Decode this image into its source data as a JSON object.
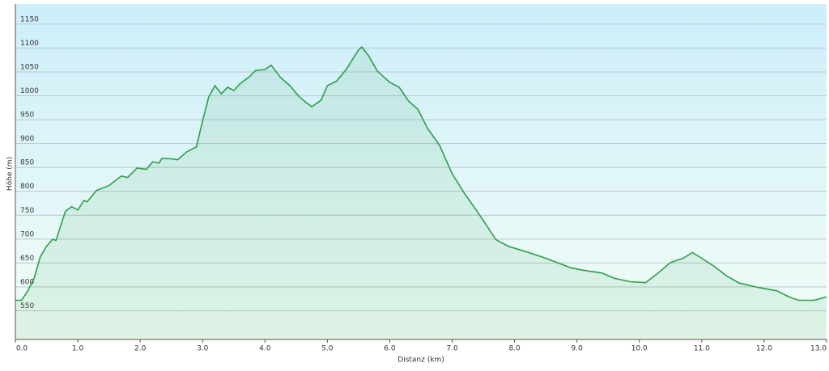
{
  "chart_data": {
    "type": "area",
    "xlabel": "Distanz  (km)",
    "ylabel": "Höhe (m)",
    "color": "#2e9e4a",
    "x": [
      0,
      0.1,
      0.2,
      0.3,
      0.4,
      0.5,
      0.6,
      0.65,
      0.8,
      0.9,
      1.0,
      1.1,
      1.15,
      1.3,
      1.5,
      1.7,
      1.8,
      1.95,
      2.1,
      2.2,
      2.3,
      2.35,
      2.5,
      2.6,
      2.75,
      2.9,
      3.0,
      3.1,
      3.2,
      3.3,
      3.4,
      3.5,
      3.6,
      3.75,
      3.85,
      4.0,
      4.1,
      4.25,
      4.4,
      4.55,
      4.65,
      4.75,
      4.9,
      5.0,
      5.15,
      5.3,
      5.5,
      5.55,
      5.65,
      5.8,
      6.0,
      6.15,
      6.3,
      6.45,
      6.6,
      6.8,
      7.0,
      7.2,
      7.4,
      7.6,
      7.7,
      7.9,
      8.2,
      8.5,
      8.9,
      9.1,
      9.4,
      9.6,
      9.85,
      10.1,
      10.3,
      10.5,
      10.7,
      10.85,
      11.0,
      11.2,
      11.4,
      11.6,
      11.9,
      12.2,
      12.4,
      12.55,
      12.8,
      13.0
    ],
    "values": [
      572,
      572,
      592,
      618,
      663,
      685,
      700,
      697,
      758,
      768,
      761,
      781,
      778,
      802,
      812,
      832,
      829,
      849,
      846,
      862,
      859,
      869,
      868,
      866,
      883,
      893,
      947,
      998,
      1021,
      1004,
      1018,
      1011,
      1025,
      1040,
      1053,
      1055,
      1064,
      1038,
      1021,
      998,
      987,
      977,
      991,
      1021,
      1031,
      1055,
      1096,
      1102,
      1086,
      1052,
      1028,
      1018,
      989,
      972,
      933,
      896,
      837,
      795,
      758,
      719,
      699,
      685,
      673,
      660,
      640,
      635,
      629,
      618,
      611,
      609,
      629,
      651,
      660,
      672,
      660,
      643,
      623,
      608,
      599,
      592,
      579,
      572,
      572,
      579
    ],
    "xlim": [
      0,
      13
    ],
    "ylim": [
      490,
      1192
    ],
    "xticks": [
      {
        "value": 0,
        "label": "0.0"
      },
      {
        "value": 1,
        "label": "1.0"
      },
      {
        "value": 2,
        "label": "2.0"
      },
      {
        "value": 3,
        "label": "3.0"
      },
      {
        "value": 4,
        "label": "4.0"
      },
      {
        "value": 5,
        "label": "5.0"
      },
      {
        "value": 6,
        "label": "6.0"
      },
      {
        "value": 7,
        "label": "7.0"
      },
      {
        "value": 8,
        "label": "8.0"
      },
      {
        "value": 9,
        "label": "9.0"
      },
      {
        "value": 10,
        "label": "10.0"
      },
      {
        "value": 11,
        "label": "11.0"
      },
      {
        "value": 12,
        "label": "12.0"
      },
      {
        "value": 13,
        "label": "13.0"
      }
    ],
    "yticks": [
      550,
      600,
      650,
      700,
      750,
      800,
      850,
      900,
      950,
      1000,
      1050,
      1100,
      1150
    ],
    "grid": true
  }
}
